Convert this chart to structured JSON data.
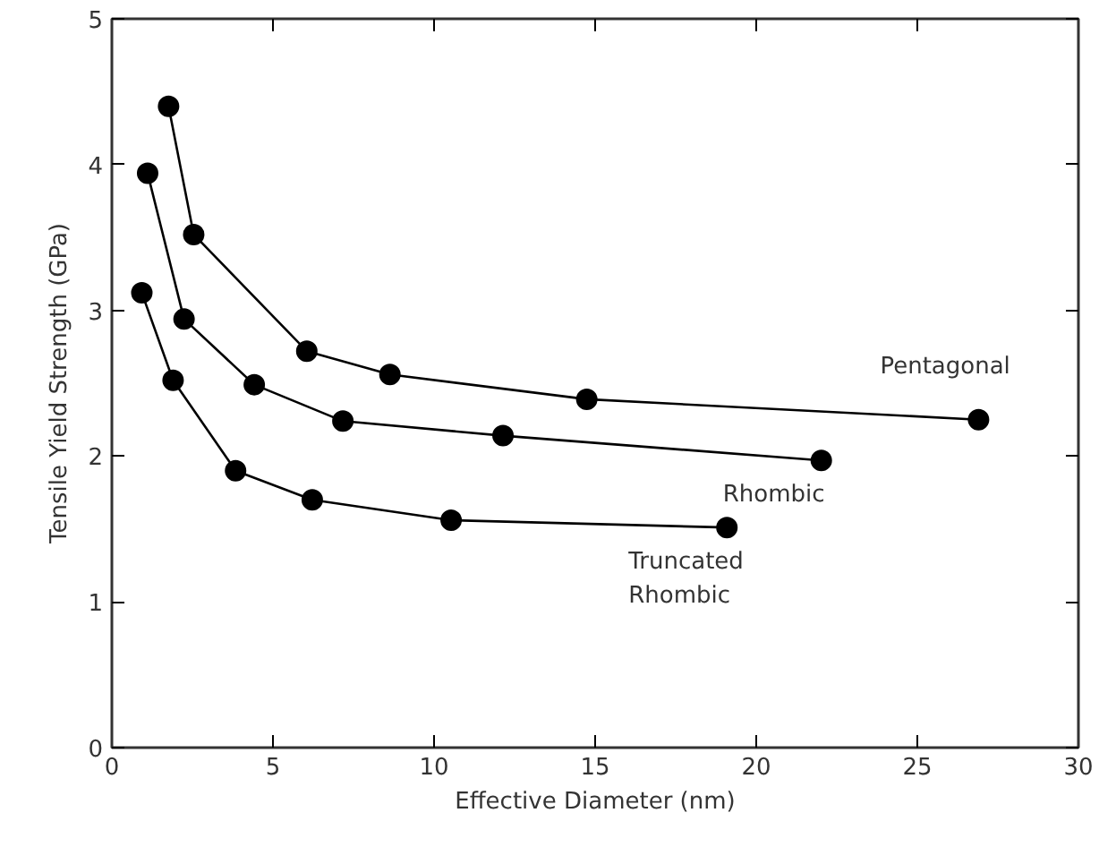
{
  "chart_data": {
    "type": "line",
    "xlabel": "Effective Diameter (nm)",
    "ylabel": "Tensile Yield Strength (GPa)",
    "xlim": [
      0,
      30
    ],
    "ylim": [
      0,
      5
    ],
    "xticks": [
      0,
      5,
      10,
      15,
      20,
      25,
      30
    ],
    "yticks": [
      0,
      1,
      2,
      3,
      4,
      5
    ],
    "grid": false,
    "legend": false,
    "marker": "circle",
    "line_style": "solid",
    "series": [
      {
        "name": "Pentagonal",
        "color": "#000000",
        "x": [
          1.76,
          2.54,
          6.05,
          8.63,
          14.74,
          26.9
        ],
        "values": [
          4.4,
          3.52,
          2.72,
          2.56,
          2.39,
          2.25
        ]
      },
      {
        "name": "Rhombic",
        "color": "#000000",
        "x": [
          1.11,
          2.24,
          4.42,
          7.17,
          12.14,
          22.02
        ],
        "values": [
          3.94,
          2.94,
          2.49,
          2.24,
          2.14,
          1.97
        ]
      },
      {
        "name": "Truncated\nRhombic",
        "color": "#000000",
        "x": [
          0.93,
          1.9,
          3.84,
          6.22,
          10.53,
          19.09
        ],
        "values": [
          3.12,
          2.52,
          1.9,
          1.7,
          1.56,
          1.51
        ]
      }
    ]
  }
}
